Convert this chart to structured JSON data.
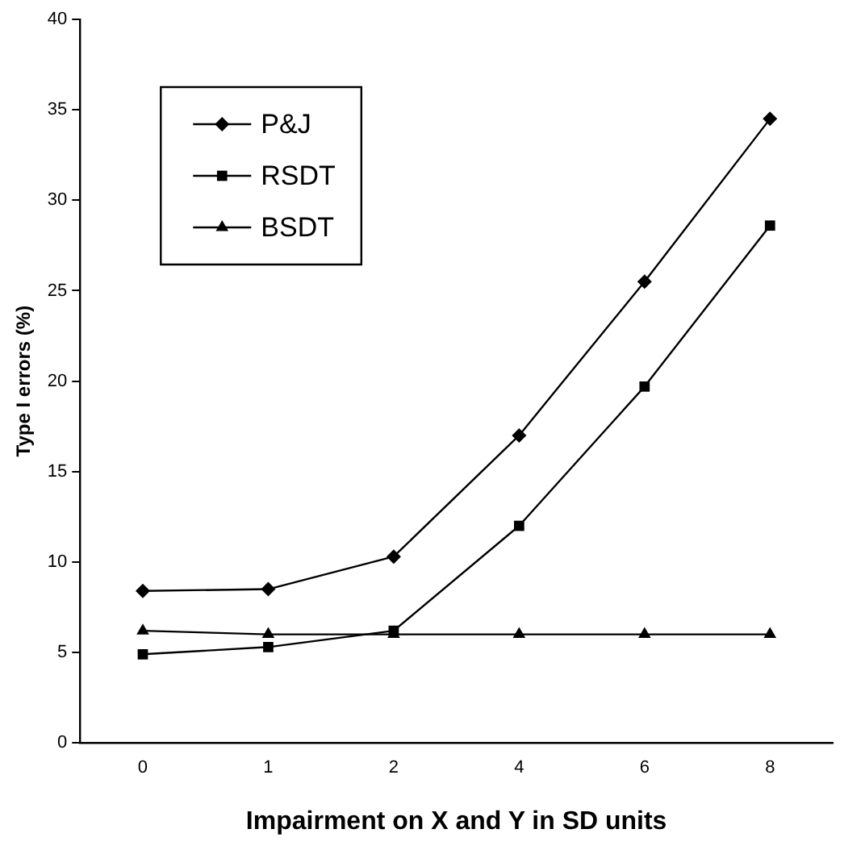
{
  "chart_data": {
    "type": "line",
    "xlabel": "Impairment on X and Y in SD units",
    "ylabel": "Type I errors (%)",
    "categories": [
      "0",
      "1",
      "2",
      "4",
      "6",
      "8"
    ],
    "series": [
      {
        "name": "P&J",
        "color": "#000000",
        "marker": "diamond",
        "values": [
          8.4,
          8.5,
          10.3,
          17.0,
          25.5,
          34.5
        ]
      },
      {
        "name": "RSDT",
        "color": "#000000",
        "marker": "square",
        "values": [
          4.9,
          5.3,
          6.2,
          12.0,
          19.7,
          28.6
        ]
      },
      {
        "name": "BSDT",
        "color": "#000000",
        "marker": "triangle",
        "values": [
          6.2,
          6.0,
          6.0,
          6.0,
          6.0,
          6.0
        ]
      }
    ],
    "ylim": [
      0,
      40
    ],
    "yticks": [
      0,
      5,
      10,
      15,
      20,
      25,
      30,
      35,
      40
    ],
    "grid": false,
    "legend": "top left",
    "line_style": "solid"
  }
}
